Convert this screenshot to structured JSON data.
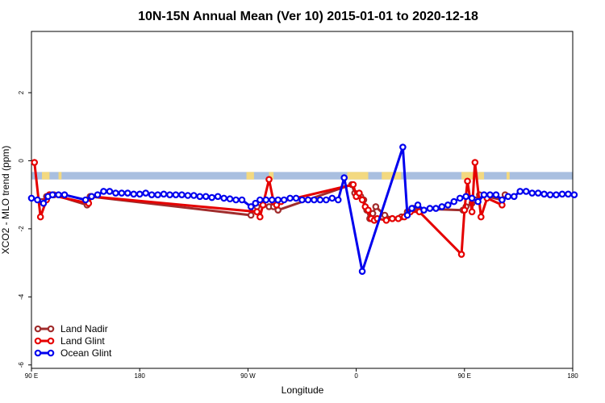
{
  "chart_data": {
    "type": "line",
    "title": "10N-15N Annual Mean (Ver 10)   2015-01-01 to 2020-12-18",
    "xlabel": "Longitude",
    "ylabel": "XCO2 - MLO trend (ppm)",
    "xlim": [
      -90,
      270
    ],
    "ylim": [
      -6.1,
      3.8
    ],
    "x_ticks": [
      {
        "value": -90,
        "label": "90 E"
      },
      {
        "value": -18,
        "label": "180"
      },
      {
        "value": 54,
        "label": "90 W"
      },
      {
        "value": 126,
        "label": "0"
      },
      {
        "value": 198,
        "label": "90 E"
      },
      {
        "value": 270,
        "label": "180"
      }
    ],
    "y_ticks": [
      {
        "value": 2,
        "label": "2"
      },
      {
        "value": 0,
        "label": "0"
      },
      {
        "value": -2,
        "label": "-2"
      },
      {
        "value": -4,
        "label": "-4"
      },
      {
        "value": -6,
        "label": "-6"
      }
    ],
    "grid": false,
    "legend_position": "bottom-left",
    "background_band": {
      "y_from": -0.55,
      "y_to": -0.33,
      "color": "#a9bfe0",
      "land_color": "#f3d980"
    },
    "series": [
      {
        "name": "Land Nadir",
        "color": "#a02c2c",
        "x": [
          -83,
          -80,
          -78,
          -75,
          -53,
          -51,
          56,
          58,
          60,
          64,
          68,
          71,
          74,
          123,
          125,
          127,
          129,
          131,
          133,
          135,
          137,
          139,
          145,
          150,
          156,
          160,
          164,
          197,
          199,
          203,
          205,
          208,
          223,
          225
        ],
        "y": [
          -1.2,
          -1.05,
          -1.0,
          -1.0,
          -1.3,
          -1.05,
          -1.6,
          -1.4,
          -1.35,
          -1.3,
          -1.35,
          -1.35,
          -1.45,
          -0.7,
          -0.95,
          -1.0,
          -1.05,
          -1.15,
          -1.45,
          -1.7,
          -1.55,
          -1.35,
          -1.6,
          -1.7,
          -1.65,
          -1.5,
          -1.4,
          -1.45,
          -1.35,
          -1.25,
          -1.15,
          -1.0,
          -1.15,
          -1.0
        ]
      },
      {
        "name": "Land Glint",
        "color": "#e50000",
        "x": [
          -88,
          -84,
          -80,
          -78,
          -52,
          -50,
          60,
          62,
          64,
          68,
          71,
          73,
          76,
          124,
          126,
          128,
          130,
          132,
          134,
          136,
          138,
          140,
          146,
          150,
          154,
          158,
          162,
          168,
          196,
          198,
          200,
          203,
          205,
          209,
          213,
          223
        ],
        "y": [
          -0.05,
          -1.65,
          -1.15,
          -1.0,
          -1.25,
          -1.05,
          -1.5,
          -1.65,
          -1.3,
          -0.55,
          -1.2,
          -1.3,
          -1.2,
          -0.7,
          -1.05,
          -0.95,
          -1.15,
          -1.35,
          -1.45,
          -1.7,
          -1.75,
          -1.7,
          -1.75,
          -1.7,
          -1.7,
          -1.65,
          -1.5,
          -1.5,
          -2.75,
          -1.45,
          -0.6,
          -1.5,
          -0.05,
          -1.65,
          -1.1,
          -1.3
        ]
      },
      {
        "name": "Ocean Glint",
        "color": "#0000ee",
        "x": [
          -90,
          -86,
          -82,
          -79,
          -76,
          -72,
          -68,
          -54,
          -50,
          -46,
          -42,
          -38,
          -34,
          -30,
          -26,
          -22,
          -18,
          -14,
          -10,
          -6,
          -2,
          2,
          6,
          10,
          14,
          18,
          22,
          26,
          30,
          34,
          38,
          42,
          46,
          50,
          56,
          59,
          62,
          66,
          70,
          74,
          78,
          82,
          86,
          90,
          94,
          98,
          102,
          106,
          110,
          114,
          118,
          130,
          157,
          160,
          163,
          167,
          171,
          175,
          179,
          183,
          187,
          191,
          195,
          199,
          203,
          207,
          211,
          215,
          219,
          223,
          227,
          231,
          235,
          239,
          243,
          247,
          251,
          255,
          259,
          263,
          267,
          271
        ],
        "y": [
          -1.1,
          -1.15,
          -1.25,
          -1.05,
          -1.0,
          -1.0,
          -1.0,
          -1.15,
          -1.05,
          -1.0,
          -0.9,
          -0.9,
          -0.95,
          -0.95,
          -0.95,
          -0.98,
          -0.98,
          -0.95,
          -1.0,
          -1.0,
          -0.98,
          -1.0,
          -1.0,
          -1.0,
          -1.02,
          -1.02,
          -1.05,
          -1.05,
          -1.08,
          -1.05,
          -1.1,
          -1.12,
          -1.15,
          -1.15,
          -1.35,
          -1.25,
          -1.15,
          -1.15,
          -1.15,
          -1.15,
          -1.15,
          -1.1,
          -1.1,
          -1.15,
          -1.15,
          -1.15,
          -1.15,
          -1.15,
          -1.1,
          -1.15,
          -0.5,
          -3.25,
          0.4,
          -1.6,
          -1.4,
          -1.3,
          -1.45,
          -1.4,
          -1.4,
          -1.35,
          -1.3,
          -1.2,
          -1.1,
          -1.05,
          -1.1,
          -1.2,
          -1.0,
          -1.0,
          -1.0,
          -1.15,
          -1.05,
          -1.05,
          -0.9,
          -0.9,
          -0.95,
          -0.95,
          -0.98,
          -1.0,
          -1.0,
          -0.98,
          -0.98,
          -1.0
        ]
      }
    ]
  }
}
